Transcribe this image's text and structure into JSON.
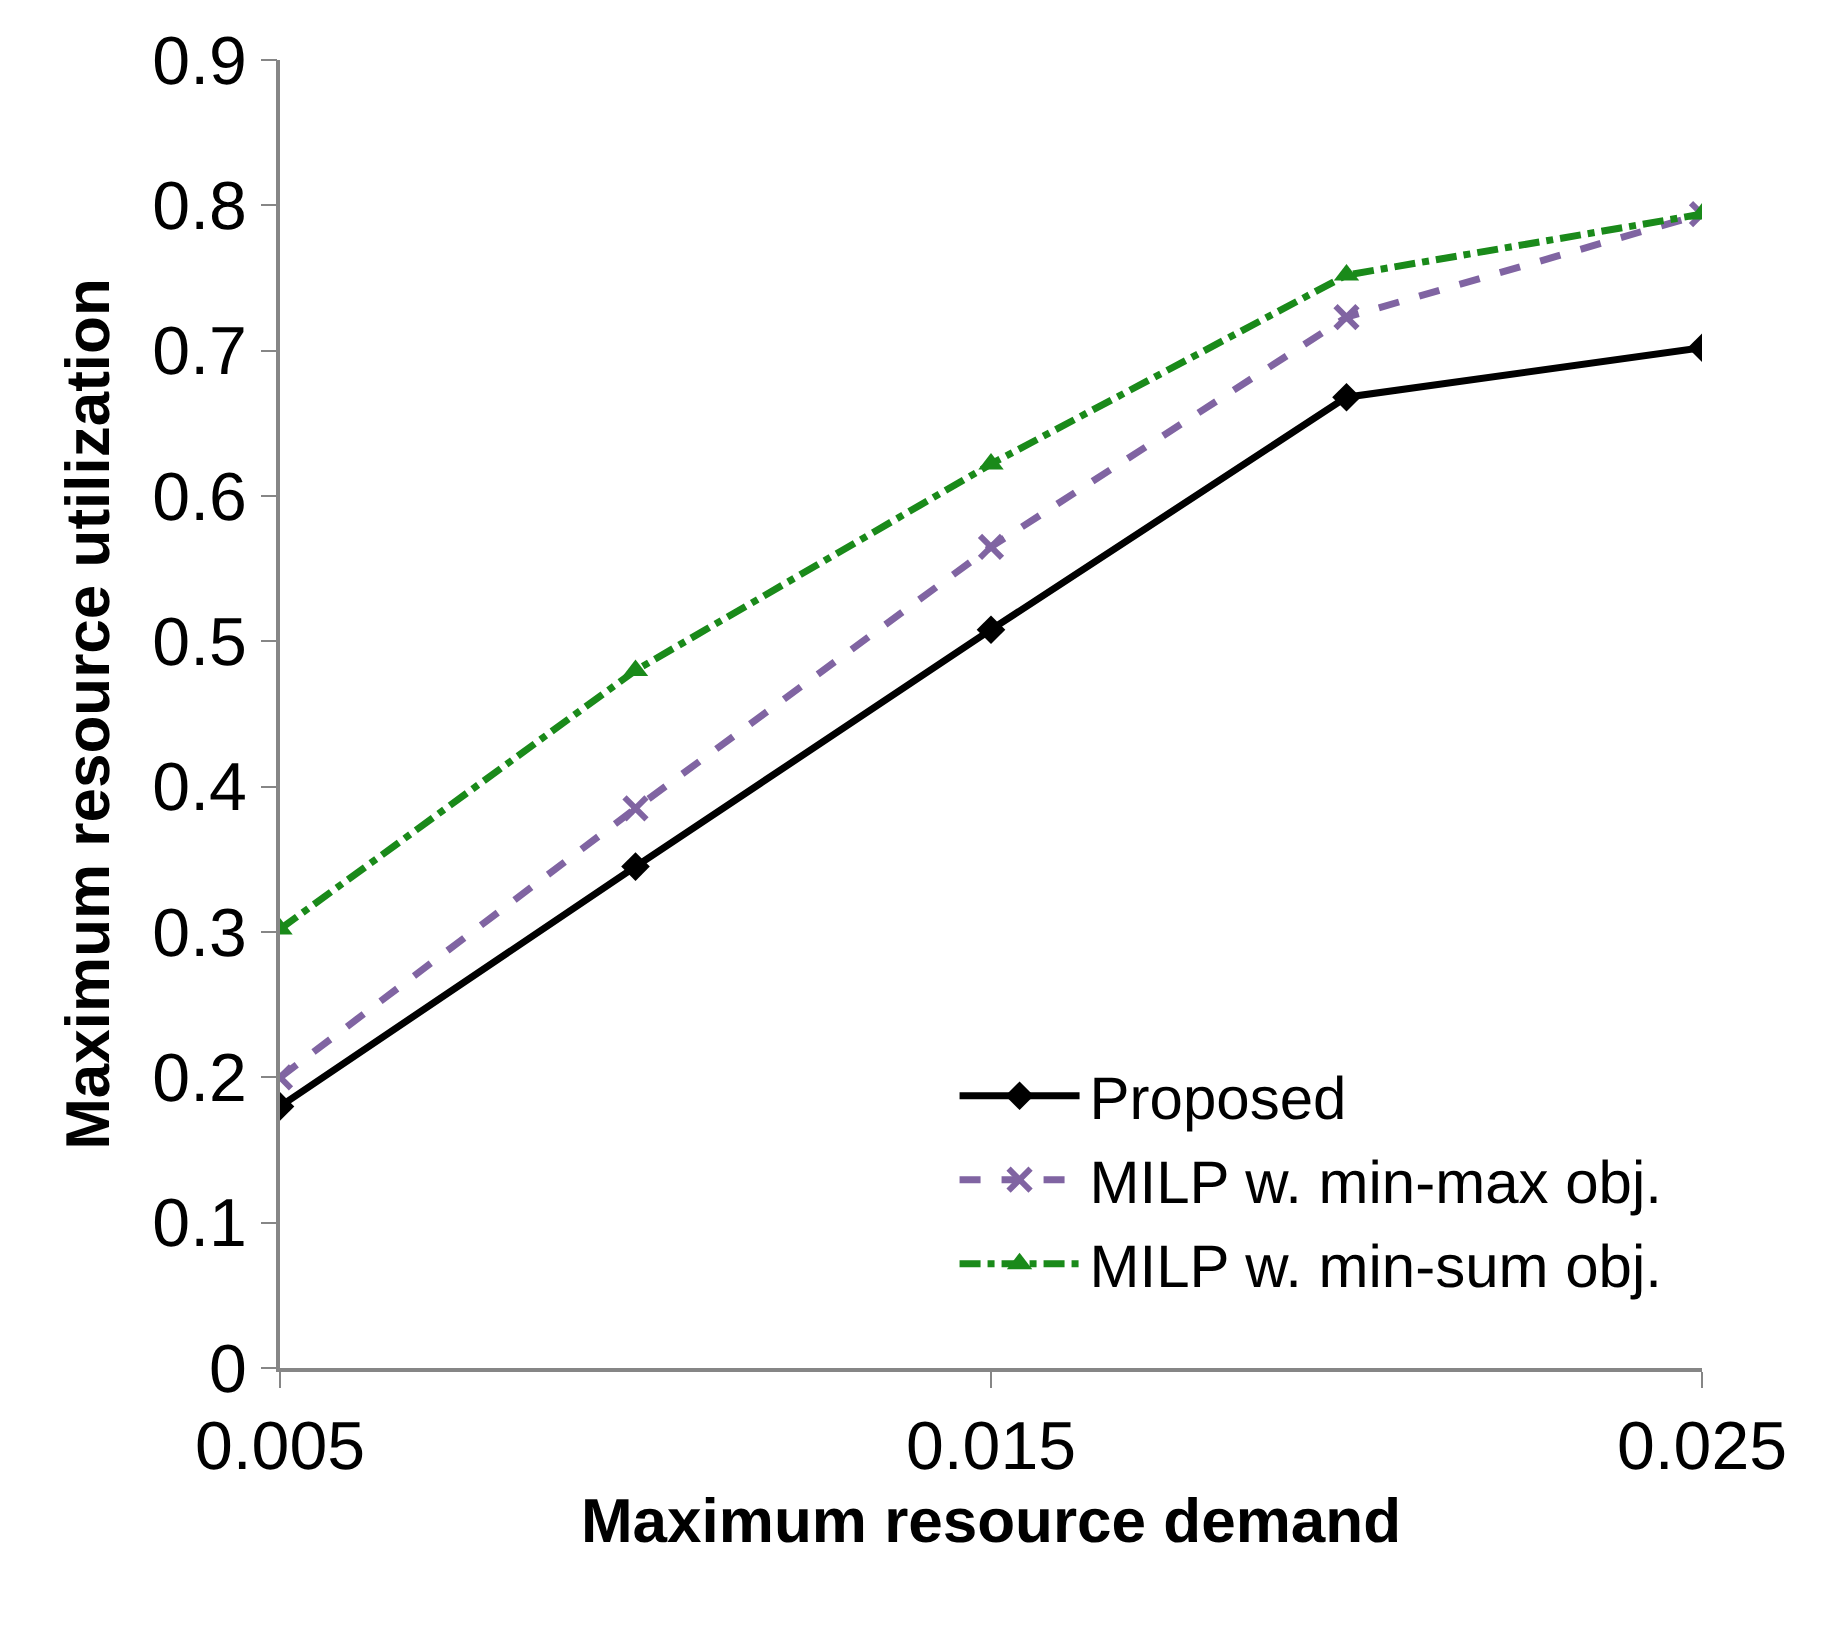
{
  "chart_data": {
    "type": "line",
    "xlabel": "Maximum resource demand",
    "ylabel": "Maximum resource utilization",
    "x": [
      0.005,
      0.01,
      0.015,
      0.02,
      0.025
    ],
    "series": [
      {
        "name": "Proposed",
        "color": "#000000",
        "marker": "diamond",
        "line_style": "solid",
        "values": [
          0.18,
          0.345,
          0.508,
          0.668,
          0.702
        ]
      },
      {
        "name": "MILP w. min-max obj.",
        "color": "#8064a2",
        "marker": "cross",
        "line_style": "dashed",
        "values": [
          0.2,
          0.385,
          0.565,
          0.723,
          0.794
        ]
      },
      {
        "name": "MILP w. min-sum obj.",
        "color": "#1a8a1a",
        "marker": "triangle",
        "line_style": "dashdot",
        "values": [
          0.302,
          0.48,
          0.622,
          0.752,
          0.794
        ]
      }
    ],
    "xlim": [
      0.005,
      0.025
    ],
    "xticks": [
      0.005,
      0.015,
      0.025
    ],
    "ylim": [
      0,
      0.9
    ],
    "yticks": [
      0,
      0.1,
      0.2,
      0.3,
      0.4,
      0.5,
      0.6,
      0.7,
      0.8,
      0.9
    ],
    "legend": "bottom right"
  }
}
